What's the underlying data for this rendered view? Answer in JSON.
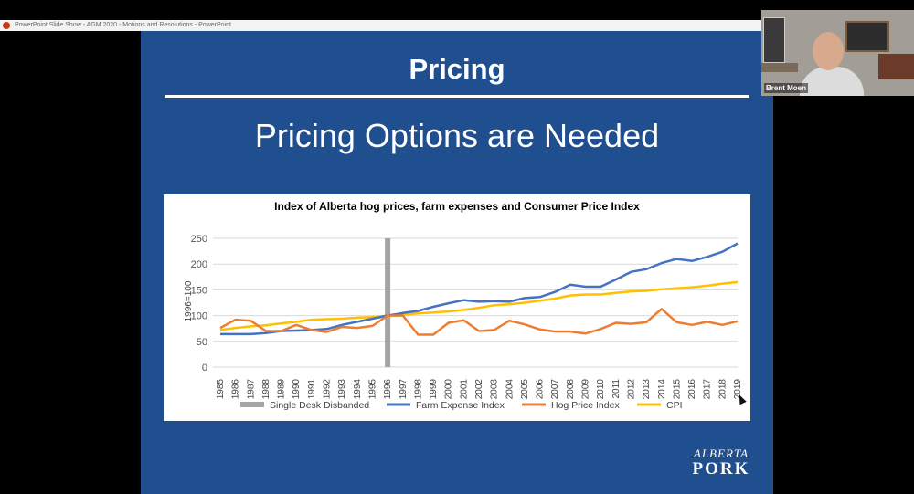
{
  "window": {
    "title": "PowerPoint Slide Show - AGM 2020 - Motions and Resolutions - PowerPoint"
  },
  "slide": {
    "title": "Pricing",
    "subtitle": "Pricing Options are Needed",
    "logo_line1": "ALBERTA",
    "logo_line2": "PORK"
  },
  "video": {
    "participant_name": "Brent Moen"
  },
  "colors": {
    "slide_bg": "#1f4f8f",
    "farm": "#4472c4",
    "hog": "#ed7d31",
    "cpi": "#ffc000",
    "desk": "#a5a5a5"
  },
  "chart_data": {
    "type": "line",
    "title": "Index of Alberta hog prices, farm expenses and Consumer Price Index",
    "xlabel": "",
    "ylabel": "1996=100",
    "ylim": [
      0,
      250
    ],
    "yticks": [
      0,
      50,
      100,
      150,
      200,
      250
    ],
    "grid": true,
    "legend_position": "bottom",
    "categories": [
      "1985",
      "1986",
      "1987",
      "1988",
      "1989",
      "1990",
      "1991",
      "1992",
      "1993",
      "1994",
      "1995",
      "1996",
      "1997",
      "1998",
      "1999",
      "2000",
      "2001",
      "2002",
      "2003",
      "2004",
      "2005",
      "2006",
      "2007",
      "2008",
      "2009",
      "2010",
      "2011",
      "2012",
      "2013",
      "2014",
      "2015",
      "2016",
      "2017",
      "2018",
      "2019"
    ],
    "marker_category": "1996",
    "marker_label": "Single Desk Disbanded",
    "series": [
      {
        "name": "Farm Expense Index",
        "values": [
          64,
          64,
          64,
          66,
          70,
          71,
          72,
          74,
          82,
          88,
          94,
          100,
          105,
          109,
          117,
          124,
          130,
          127,
          128,
          127,
          134,
          136,
          146,
          160,
          156,
          156,
          170,
          185,
          190,
          202,
          210,
          206,
          214,
          224,
          240
        ]
      },
      {
        "name": "Hog Price Index",
        "values": [
          76,
          92,
          90,
          70,
          70,
          82,
          72,
          68,
          78,
          76,
          80,
          100,
          100,
          63,
          63,
          86,
          91,
          70,
          72,
          90,
          83,
          73,
          69,
          69,
          65,
          74,
          86,
          84,
          87,
          113,
          87,
          82,
          88,
          82,
          89
        ]
      },
      {
        "name": "CPI",
        "values": [
          72,
          76,
          79,
          81,
          85,
          88,
          92,
          93,
          94,
          96,
          97,
          100,
          102,
          104,
          106,
          108,
          111,
          115,
          120,
          122,
          125,
          129,
          133,
          139,
          141,
          141,
          144,
          147,
          148,
          151,
          153,
          155,
          158,
          162,
          165
        ]
      }
    ]
  }
}
